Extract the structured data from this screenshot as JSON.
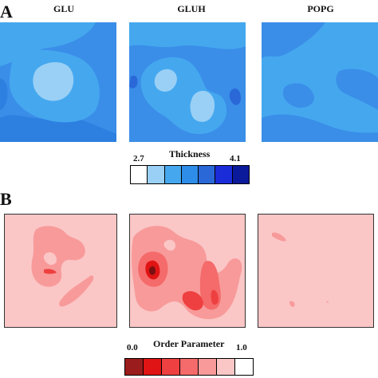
{
  "panel_a": {
    "letter": "A",
    "columns": [
      "GLU",
      "GLUH",
      "POPG"
    ],
    "colorbar": {
      "title": "Thickness",
      "min_label": "2.7",
      "max_label": "4.1",
      "colors": [
        "#ffffff",
        "#9ad0f5",
        "#45a8ef",
        "#2d8de8",
        "#2a68d8",
        "#1a2cd8",
        "#0a1a9a"
      ]
    }
  },
  "panel_b": {
    "letter": "B",
    "colorbar": {
      "title": "Order Parameter",
      "min_label": "0.0",
      "max_label": "1.0",
      "colors": [
        "#9b1c1c",
        "#e01414",
        "#ee4040",
        "#f56a6a",
        "#f89a9a",
        "#fbc6c6",
        "#ffffff"
      ]
    }
  }
}
